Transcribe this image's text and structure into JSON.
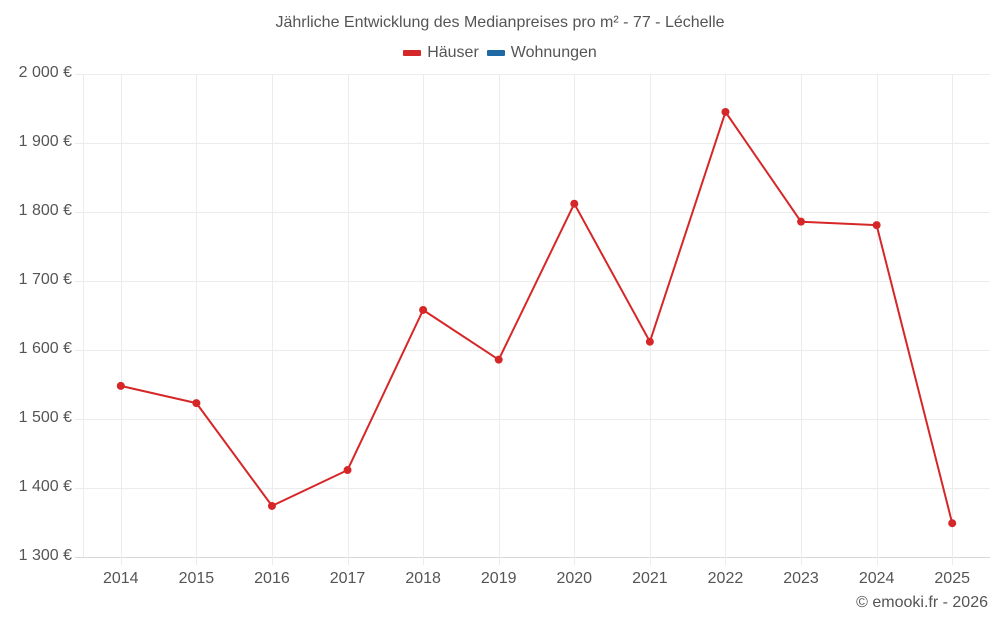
{
  "title": "Jährliche Entwicklung des Medianpreises pro m² - 77 - Léchelle",
  "legend": [
    {
      "label": "Häuser",
      "color": "#d62728"
    },
    {
      "label": "Wohnungen",
      "color": "#1f6aa5"
    }
  ],
  "y_ticks": [
    "2 000 €",
    "1 900 €",
    "1 800 €",
    "1 700 €",
    "1 600 €",
    "1 500 €",
    "1 400 €",
    "1 300 €"
  ],
  "x_ticks": [
    "2014",
    "2015",
    "2016",
    "2017",
    "2018",
    "2019",
    "2020",
    "2021",
    "2022",
    "2023",
    "2024",
    "2025"
  ],
  "credit": "© emooki.fr - 2026",
  "chart_data": {
    "type": "line",
    "title": "Jährliche Entwicklung des Medianpreises pro m² - 77 - Léchelle",
    "xlabel": "",
    "ylabel": "",
    "categories": [
      "2014",
      "2015",
      "2016",
      "2017",
      "2018",
      "2019",
      "2020",
      "2021",
      "2022",
      "2023",
      "2024",
      "2025"
    ],
    "series": [
      {
        "name": "Häuser",
        "color": "#d62728",
        "values": [
          1548,
          1523,
          1374,
          1426,
          1658,
          1586,
          1812,
          1612,
          1945,
          1786,
          1781,
          1349
        ]
      },
      {
        "name": "Wohnungen",
        "color": "#1f6aa5",
        "values": []
      }
    ],
    "ylim": [
      1300,
      2000
    ],
    "y_tick_values": [
      2000,
      1900,
      1800,
      1700,
      1600,
      1500,
      1400,
      1300
    ],
    "grid": true,
    "legend_position": "top",
    "y_unit": "€"
  }
}
